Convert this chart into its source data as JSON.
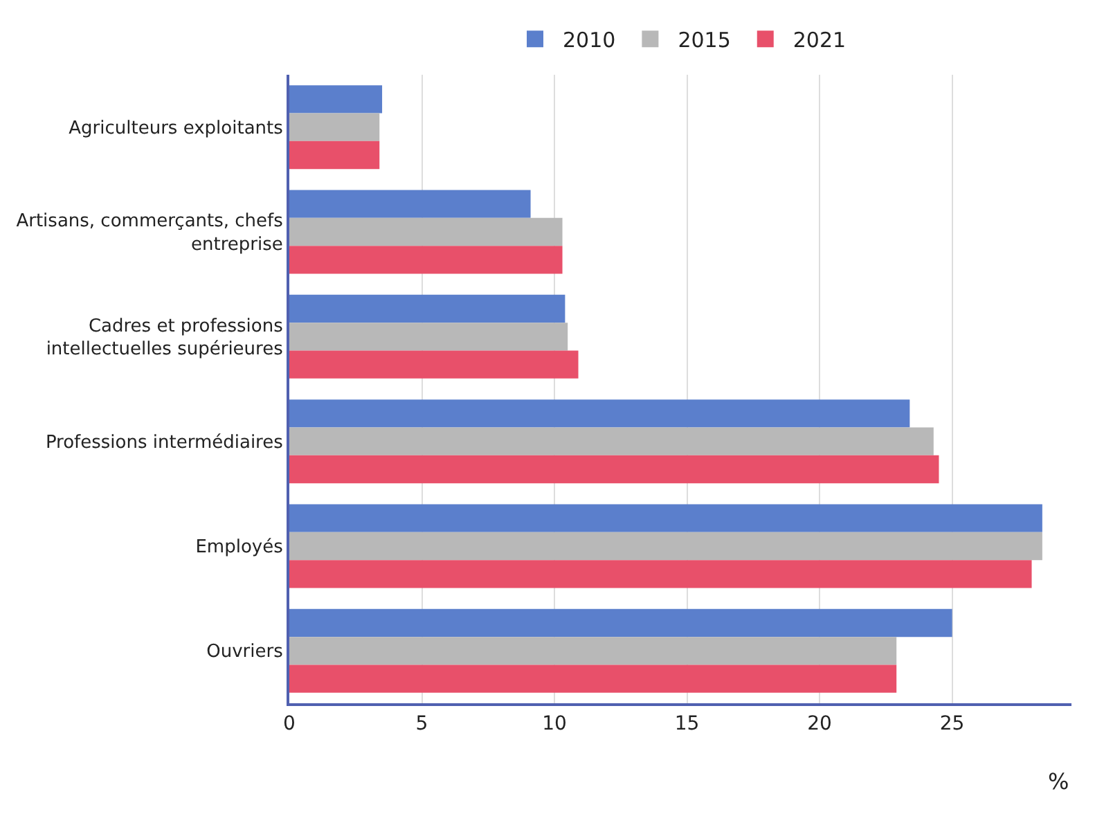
{
  "chart_data": {
    "type": "bar",
    "orientation": "horizontal",
    "xlabel": "%",
    "categories": [
      "Agriculteurs exploitants",
      "Artisans, commerçants, chefs entreprise",
      "Cadres et professions intellectuelles supérieures",
      "Professions intermédiaires",
      "Employés",
      "Ouvriers"
    ],
    "series": [
      {
        "name": "2010",
        "color": "#5b7fcc",
        "values": [
          3.5,
          9.1,
          10.4,
          23.4,
          28.4,
          25.0
        ]
      },
      {
        "name": "2015",
        "color": "#b8b8b8",
        "values": [
          3.4,
          10.3,
          10.5,
          24.3,
          28.4,
          22.9
        ]
      },
      {
        "name": "2021",
        "color": "#e8506a",
        "values": [
          3.4,
          10.3,
          10.9,
          24.5,
          28.0,
          22.9
        ]
      }
    ],
    "xlim": [
      0,
      29.5
    ],
    "xticks": [
      0,
      5,
      10,
      15,
      20,
      25
    ],
    "grid": "x",
    "legend": "top"
  }
}
